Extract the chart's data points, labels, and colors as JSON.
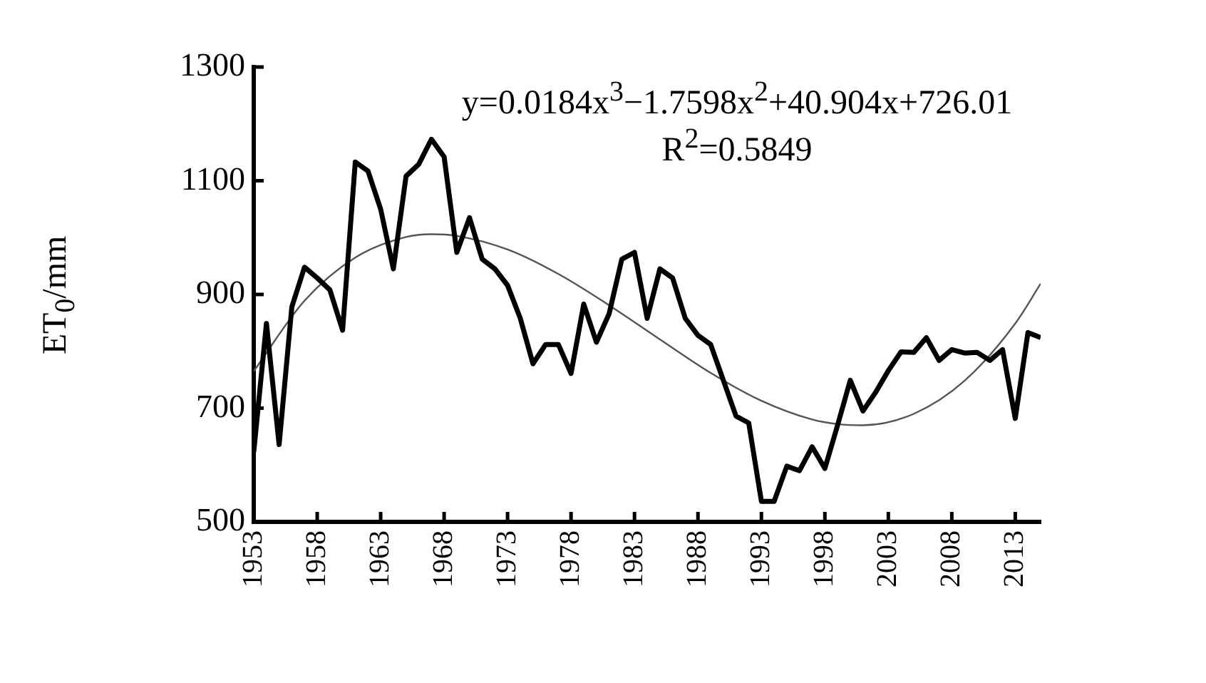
{
  "chart_data": {
    "type": "line",
    "ylabel": "ET$_{0}$/mm",
    "annotations": [
      "y=0.0184x$^{3}$−1.7598x$^{2}$+40.904x+726.01",
      "R$^{2}$=0.5849"
    ],
    "x": [
      1953,
      1954,
      1955,
      1956,
      1957,
      1958,
      1959,
      1960,
      1961,
      1962,
      1963,
      1964,
      1965,
      1966,
      1967,
      1968,
      1969,
      1970,
      1971,
      1972,
      1973,
      1974,
      1975,
      1976,
      1977,
      1978,
      1979,
      1980,
      1981,
      1982,
      1983,
      1984,
      1985,
      1986,
      1987,
      1988,
      1989,
      1990,
      1991,
      1992,
      1993,
      1994,
      1995,
      1996,
      1997,
      1998,
      1999,
      2000,
      2001,
      2002,
      2003,
      2004,
      2005,
      2006,
      2007,
      2008,
      2009,
      2010,
      2011,
      2012,
      2013,
      2014,
      2015
    ],
    "series": [
      {
        "color": "#000000",
        "values": [
          623,
          849,
          636,
          878,
          948,
          929,
          908,
          837,
          1133,
          1117,
          1050,
          945,
          1108,
          1129,
          1173,
          1142,
          974,
          1035,
          962,
          945,
          916,
          858,
          778,
          812,
          812,
          761,
          883,
          816,
          866,
          962,
          974,
          858,
          945,
          929,
          858,
          828,
          812,
          749,
          686,
          674,
          536,
          536,
          598,
          590,
          632,
          594,
          670,
          749,
          695,
          728,
          766,
          799,
          798,
          824,
          784,
          803,
          797,
          798,
          784,
          803,
          682,
          833,
          824
        ]
      },
      {
        "type": "line",
        "color": "#555555",
        "x": [
          1953,
          1957,
          1961,
          1965,
          1967,
          1969,
          1973,
          1977,
          1981,
          1985,
          1989,
          1993,
          1997,
          1999,
          2001,
          2005,
          2009,
          2013,
          2015
        ],
        "values": [
          765,
          889,
          965,
          1001,
          1006,
          1003,
          979,
          936,
          881,
          821,
          762,
          713,
          680,
          672,
          670,
          690,
          748,
          849,
          919
        ]
      }
    ],
    "xlim": [
      1953,
      2015
    ],
    "xticks": [
      1953,
      1958,
      1963,
      1968,
      1973,
      1978,
      1983,
      1988,
      1993,
      1998,
      2003,
      2008,
      2013
    ],
    "ylim": [
      500,
      1300
    ],
    "yticks": [
      500,
      700,
      900,
      1100,
      1300
    ],
    "grid": false,
    "legend": false,
    "marker": "none",
    "line_style": "solid"
  }
}
